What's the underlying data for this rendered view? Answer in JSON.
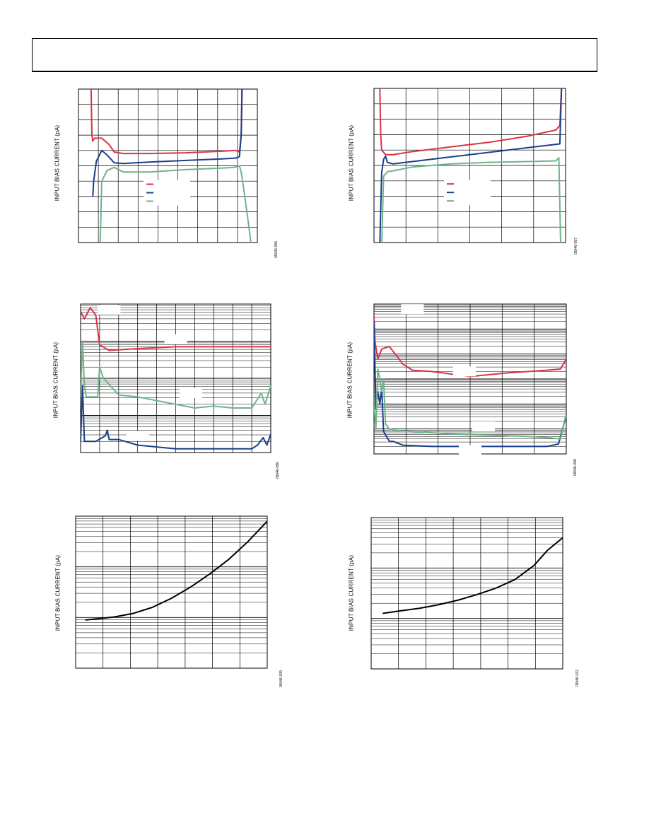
{
  "page": {
    "header": ""
  },
  "chart_data": [
    {
      "id": "fig-a",
      "type": "line",
      "ylabel": "INPUT BIAS CURRENT (pA)",
      "figure_id": "09046-055",
      "yscale": "linear",
      "grid_cols": 9,
      "grid_rows": 10,
      "xlim": [
        0,
        1
      ],
      "ylim": [
        0,
        10
      ],
      "legend": {
        "placement": "center",
        "count": 3
      },
      "series": [
        {
          "color": "#d8334a",
          "x": [
            0.07,
            0.075,
            0.08,
            0.09,
            0.13,
            0.17,
            0.2,
            0.25,
            0.4,
            0.6,
            0.8,
            0.88,
            0.9,
            0.91,
            0.915
          ],
          "y": [
            10.5,
            7.0,
            6.6,
            6.8,
            6.8,
            6.4,
            5.9,
            5.8,
            5.8,
            5.85,
            5.95,
            6.0,
            5.9,
            7.0,
            10.5
          ]
        },
        {
          "color": "#1b3f8b",
          "x": [
            0.08,
            0.085,
            0.1,
            0.13,
            0.16,
            0.2,
            0.25,
            0.4,
            0.6,
            0.8,
            0.88,
            0.9,
            0.91,
            0.915
          ],
          "y": [
            3.0,
            4.0,
            5.3,
            6.0,
            5.7,
            5.2,
            5.15,
            5.25,
            5.35,
            5.45,
            5.5,
            5.6,
            7.0,
            10.5
          ]
        },
        {
          "color": "#6db48a",
          "x": [
            0.12,
            0.125,
            0.13,
            0.16,
            0.2,
            0.25,
            0.4,
            0.6,
            0.8,
            0.87,
            0.9,
            0.91,
            0.93,
            0.97
          ],
          "y": [
            -0.5,
            1.5,
            4.0,
            4.7,
            4.9,
            4.6,
            4.6,
            4.75,
            4.85,
            4.9,
            5.0,
            4.6,
            3.0,
            -0.5
          ]
        }
      ]
    },
    {
      "id": "fig-b",
      "type": "line",
      "ylabel": "INPUT BIAS CURRENT (pA)",
      "figure_id": "09046-057",
      "yscale": "linear",
      "grid_cols": 6,
      "grid_rows": 10,
      "xlim": [
        0,
        1
      ],
      "ylim": [
        0,
        10
      ],
      "legend": {
        "placement": "center",
        "count": 3
      },
      "series": [
        {
          "color": "#d8334a",
          "x": [
            0.03,
            0.035,
            0.04,
            0.06,
            0.1,
            0.2,
            0.4,
            0.6,
            0.8,
            0.95,
            0.97,
            0.98
          ],
          "y": [
            10.5,
            7.0,
            6.0,
            5.7,
            5.7,
            5.9,
            6.2,
            6.5,
            6.9,
            7.3,
            7.6,
            10.5
          ]
        },
        {
          "color": "#1b3f8b",
          "x": [
            0.03,
            0.04,
            0.05,
            0.06,
            0.07,
            0.1,
            0.3,
            0.5,
            0.7,
            0.9,
            0.97,
            0.98
          ],
          "y": [
            -0.5,
            4.5,
            5.4,
            5.6,
            5.2,
            5.1,
            5.4,
            5.7,
            6.0,
            6.3,
            6.4,
            10.5
          ]
        },
        {
          "color": "#6db48a",
          "x": [
            0.04,
            0.045,
            0.05,
            0.07,
            0.1,
            0.2,
            0.4,
            0.6,
            0.8,
            0.95,
            0.965,
            0.975
          ],
          "y": [
            -0.5,
            2.0,
            4.3,
            4.6,
            4.65,
            4.9,
            5.1,
            5.2,
            5.25,
            5.3,
            5.5,
            -0.5
          ]
        }
      ]
    },
    {
      "id": "fig-c",
      "type": "line",
      "ylabel": "INPUT BIAS CURRENT (pA)",
      "figure_id": "09046-056",
      "yscale": "log",
      "grid_cols": 10,
      "decades": 4,
      "xlim": [
        0,
        1
      ],
      "ylim": [
        0,
        4
      ],
      "labels": [
        {
          "x": 0.15,
          "y": 3.84
        },
        {
          "x": 0.5,
          "y": 3.05
        },
        {
          "x": 0.58,
          "y": 1.6
        },
        {
          "x": 0.3,
          "y": 0.45
        }
      ],
      "series": [
        {
          "color": "#d8334a",
          "x": [
            0.0,
            0.02,
            0.05,
            0.08,
            0.1,
            0.15,
            0.3,
            0.5,
            0.7,
            0.9,
            1.0
          ],
          "y": [
            3.8,
            3.6,
            3.9,
            3.7,
            2.9,
            2.75,
            2.8,
            2.85,
            2.85,
            2.85,
            2.85
          ]
        },
        {
          "color": "#6db48a",
          "x": [
            0.0,
            0.01,
            0.02,
            0.03,
            0.05,
            0.09,
            0.1,
            0.12,
            0.2,
            0.3,
            0.5,
            0.6,
            0.7,
            0.8,
            0.9,
            0.95,
            0.97,
            1.0
          ],
          "y": [
            1.5,
            3.0,
            1.8,
            1.5,
            1.5,
            1.5,
            2.3,
            2.0,
            1.55,
            1.5,
            1.3,
            1.2,
            1.25,
            1.2,
            1.2,
            1.6,
            1.3,
            1.8
          ]
        },
        {
          "color": "#1b3f8b",
          "x": [
            0.0,
            0.01,
            0.02,
            0.03,
            0.08,
            0.13,
            0.14,
            0.15,
            0.2,
            0.3,
            0.5,
            0.7,
            0.9,
            0.93,
            0.96,
            0.98,
            1.0
          ],
          "y": [
            0.3,
            1.8,
            0.3,
            0.3,
            0.3,
            0.45,
            0.6,
            0.35,
            0.35,
            0.2,
            0.1,
            0.1,
            0.1,
            0.2,
            0.4,
            0.2,
            0.5
          ]
        }
      ]
    },
    {
      "id": "fig-d",
      "type": "line",
      "ylabel": "INPUT BIAS CURRENT (pA)",
      "figure_id": "09046-058",
      "yscale": "log",
      "grid_cols": 6,
      "decades": 6,
      "xlim": [
        0,
        1
      ],
      "ylim": [
        0,
        6
      ],
      "labels": [
        {
          "x": 0.2,
          "y": 5.8
        },
        {
          "x": 0.47,
          "y": 3.3
        },
        {
          "x": 0.57,
          "y": 1.1
        },
        {
          "x": 0.5,
          "y": 0.15
        }
      ],
      "series": [
        {
          "color": "#d8334a",
          "x": [
            0.0,
            0.005,
            0.02,
            0.04,
            0.08,
            0.15,
            0.2,
            0.3,
            0.5,
            0.7,
            0.9,
            0.97,
            1.0
          ],
          "y": [
            5.5,
            4.5,
            3.8,
            4.2,
            4.3,
            3.6,
            3.35,
            3.3,
            3.1,
            3.25,
            3.35,
            3.4,
            3.8
          ]
        },
        {
          "color": "#1b3f8b",
          "x": [
            0.0,
            0.01,
            0.02,
            0.03,
            0.04,
            0.05,
            0.08,
            0.1,
            0.15,
            0.3,
            0.5,
            0.7,
            0.9,
            0.96,
            0.98,
            1.0
          ],
          "y": [
            5.3,
            1.8,
            2.5,
            2.0,
            2.6,
            0.9,
            0.5,
            0.5,
            0.35,
            0.3,
            0.3,
            0.3,
            0.3,
            0.4,
            1.0,
            1.5
          ]
        },
        {
          "color": "#6db48a",
          "x": [
            0.0,
            0.01,
            0.02,
            0.03,
            0.04,
            0.05,
            0.06,
            0.08,
            0.1,
            0.2,
            0.4,
            0.6,
            0.8,
            0.9,
            0.97,
            0.99,
            1.0
          ],
          "y": [
            2.0,
            1.0,
            3.4,
            3.0,
            2.5,
            3.0,
            1.2,
            1.0,
            0.95,
            0.9,
            0.8,
            0.75,
            0.7,
            0.65,
            0.6,
            1.3,
            1.6
          ]
        }
      ]
    },
    {
      "id": "fig-e",
      "type": "line",
      "ylabel": "INPUT BIAS CURRENT (pA)",
      "figure_id": "09046-009",
      "yscale": "log",
      "grid_cols": 7,
      "decades": 3,
      "xlim": [
        0,
        1
      ],
      "ylim": [
        0,
        3
      ],
      "series": [
        {
          "color": "#000000",
          "x": [
            0.05,
            0.1,
            0.2,
            0.3,
            0.4,
            0.5,
            0.6,
            0.7,
            0.8,
            0.9,
            1.0
          ],
          "y": [
            0.95,
            0.97,
            1.01,
            1.08,
            1.2,
            1.38,
            1.6,
            1.86,
            2.15,
            2.5,
            2.9
          ]
        }
      ]
    },
    {
      "id": "fig-f",
      "type": "line",
      "ylabel": "INPUT BIAS CURRENT (pA)",
      "figure_id": "09046-012",
      "yscale": "log",
      "grid_cols": 7,
      "decades": 3,
      "xlim": [
        0,
        1
      ],
      "ylim": [
        0,
        3
      ],
      "series": [
        {
          "color": "#000000",
          "x": [
            0.06,
            0.15,
            0.25,
            0.35,
            0.45,
            0.55,
            0.65,
            0.75,
            0.85,
            0.92,
            1.0
          ],
          "y": [
            1.1,
            1.15,
            1.2,
            1.27,
            1.36,
            1.47,
            1.6,
            1.77,
            2.05,
            2.35,
            2.6
          ]
        }
      ]
    }
  ]
}
